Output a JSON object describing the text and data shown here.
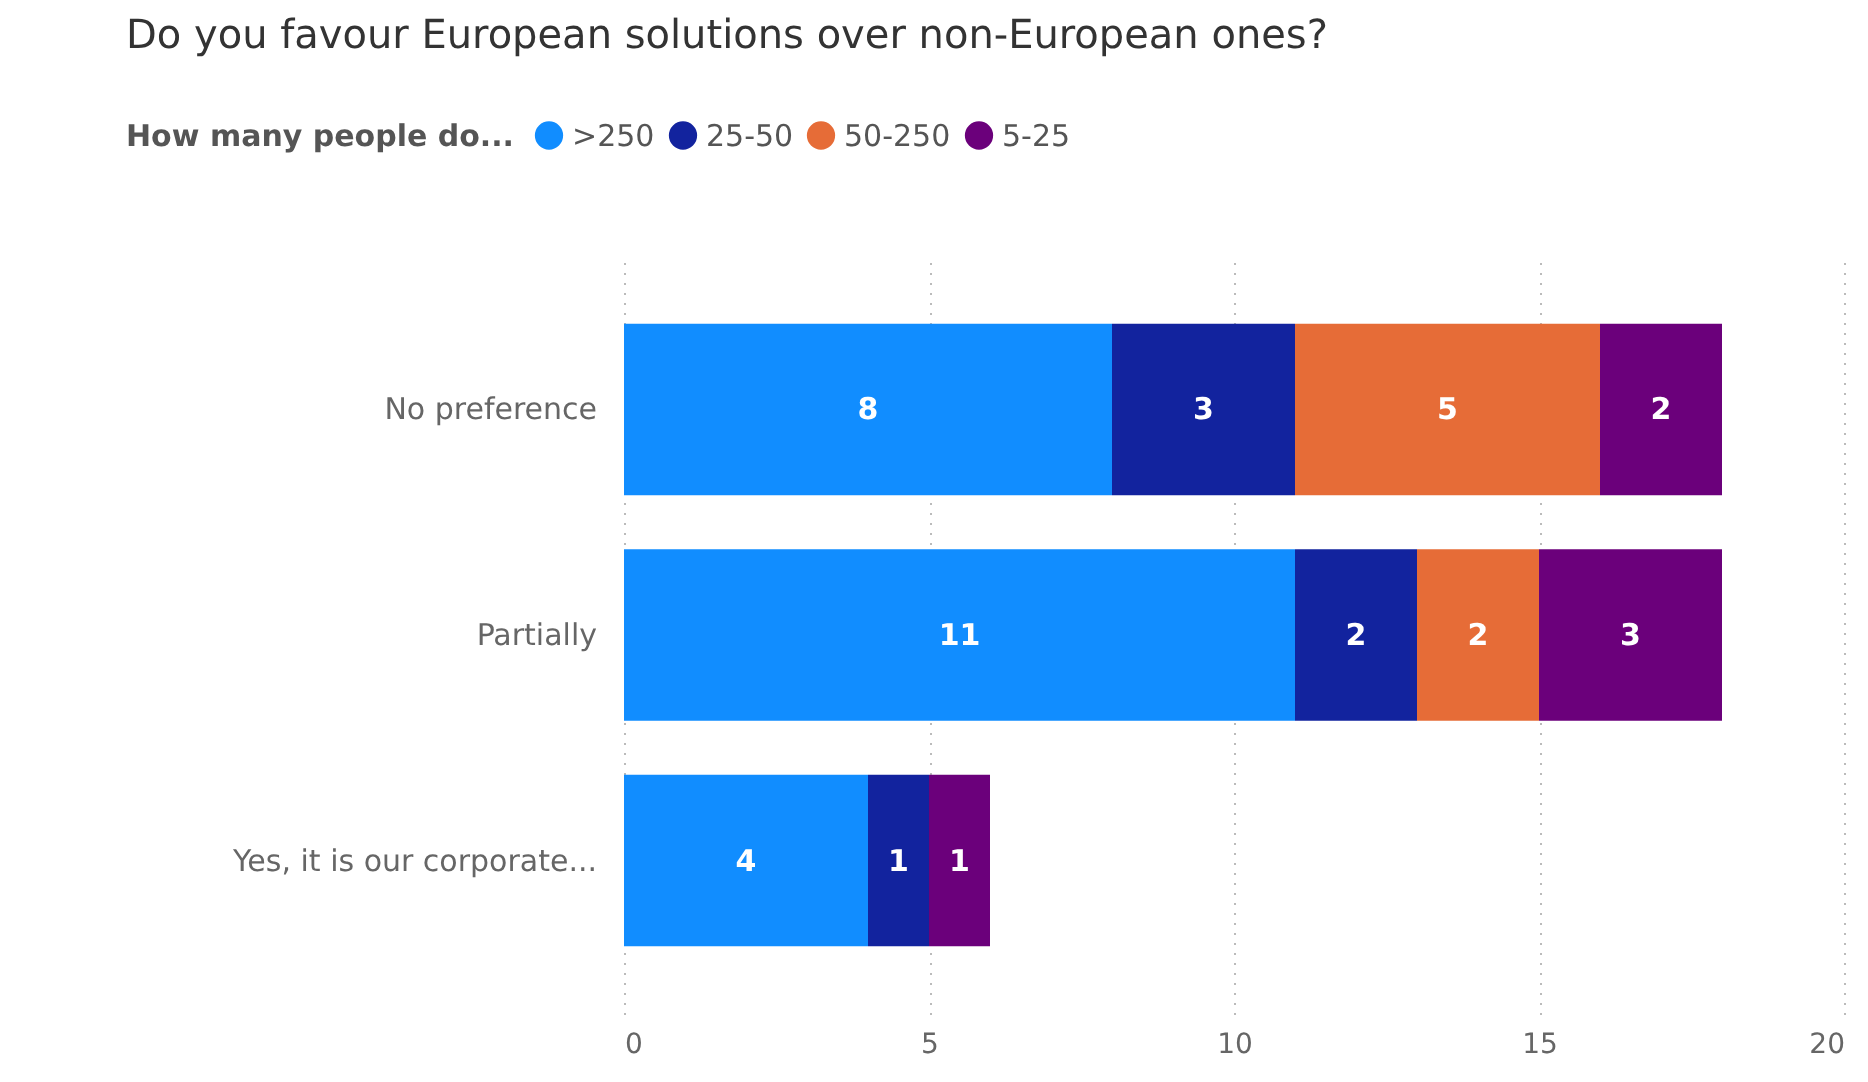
{
  "chart_data": {
    "type": "bar",
    "orientation": "horizontal",
    "stacked": true,
    "title": "Do you favour European solutions over non-European ones?",
    "legend_title": "How many people do...",
    "categories": [
      "No preference",
      "Partially",
      "Yes, it is our corporate..."
    ],
    "series": [
      {
        "name": ">250",
        "color": "#118dff",
        "values": [
          8,
          11,
          4
        ]
      },
      {
        "name": "25-50",
        "color": "#12239e",
        "values": [
          3,
          2,
          1
        ]
      },
      {
        "name": "50-250",
        "color": "#e66c37",
        "values": [
          5,
          2,
          null
        ]
      },
      {
        "name": "5-25",
        "color": "#6b007b",
        "values": [
          2,
          3,
          1
        ]
      }
    ],
    "xlim": [
      0,
      20
    ],
    "xticks": [
      0,
      5,
      10,
      15,
      20
    ],
    "grid": "x",
    "legend": "top left",
    "data_labels": true
  }
}
